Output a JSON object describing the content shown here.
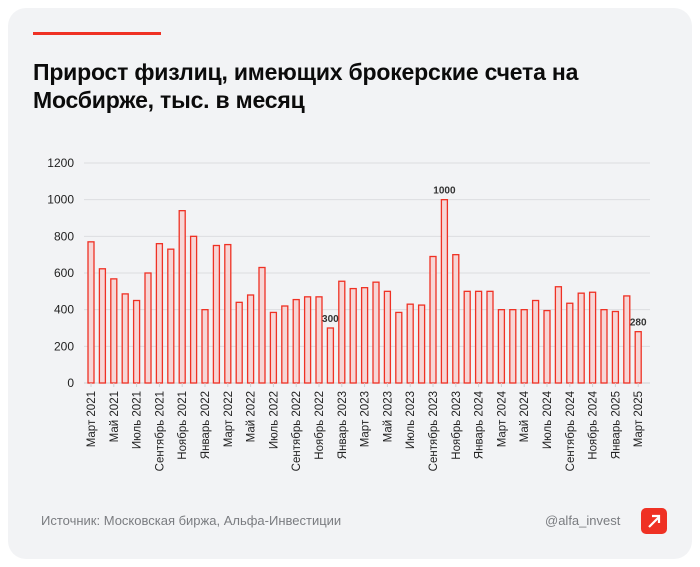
{
  "title": "Прирост физлиц, имеющих брокерские счета на Мосбирже, тыс. в месяц",
  "footer": {
    "source": "Источник: Московская биржа, Альфа-Инвестиции",
    "handle": "@alfa_invest",
    "logo_icon": "alfa-arrow-logo"
  },
  "colors": {
    "accent": "#ef3124",
    "bar_fill": "#f6d6d6",
    "bar_stroke": "#ef3124"
  },
  "chart_data": {
    "type": "bar",
    "ylim": [
      0,
      1200
    ],
    "yticks": [
      0,
      200,
      400,
      600,
      800,
      1000,
      1200
    ],
    "grid": true,
    "tick_labels": [
      "Март 2021",
      "Май 2021",
      "Июль 2021",
      "Сентябрь 2021",
      "Ноябрь 2021",
      "Январь 2022",
      "Март 2022",
      "Май 2022",
      "Июль 2022",
      "Сентябрь 2022",
      "Ноябрь 2022",
      "Январь 2023",
      "Март 2023",
      "Май 2023",
      "Июль 2023",
      "Сентябрь 2023",
      "Ноябрь 2023",
      "Январь 2024",
      "Март 2024",
      "Май 2024",
      "Июль 2024",
      "Сентябрь 2024",
      "Ноябрь 2024",
      "Январь 2025",
      "Март 2025"
    ],
    "values": [
      770,
      623,
      568,
      486,
      450,
      600,
      760,
      730,
      940,
      800,
      400,
      750,
      755,
      440,
      480,
      630,
      385,
      420,
      455,
      470,
      470,
      300,
      555,
      515,
      520,
      550,
      500,
      385,
      430,
      425,
      690,
      1000,
      700,
      500,
      500,
      500,
      400,
      400,
      400,
      450,
      395,
      525,
      435,
      490,
      495,
      400,
      390,
      475,
      280
    ],
    "data_labels": [
      {
        "index": 21,
        "text": "300"
      },
      {
        "index": 31,
        "text": "1000"
      },
      {
        "index": 48,
        "text": "280"
      }
    ]
  }
}
